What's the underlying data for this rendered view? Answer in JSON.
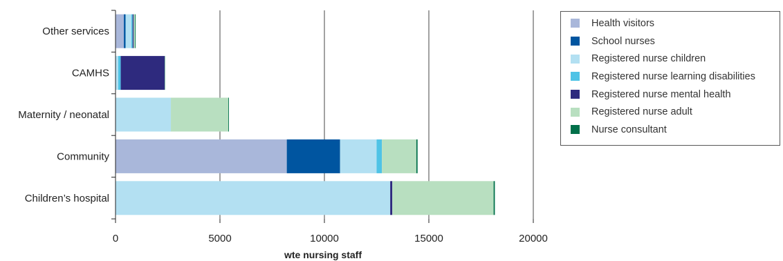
{
  "chart_data": {
    "type": "bar",
    "orientation": "horizontal",
    "stacked": true,
    "title": "",
    "xlabel": "wte nursing staff",
    "ylabel": "",
    "xlim": [
      0,
      20000
    ],
    "xticks": [
      "0",
      "5000",
      "10000",
      "15000",
      "20000"
    ],
    "grid": "vertical lines",
    "legend_position": "right",
    "categories": [
      "Other services",
      "CAMHS",
      "Maternity / neonatal",
      "Community",
      "Children’s hospital"
    ],
    "series": [
      {
        "name": "Health visitors",
        "color": "#a9b7da",
        "values": [
          400,
          0,
          0,
          8200,
          0
        ]
      },
      {
        "name": "School nurses",
        "color": "#0055a0",
        "values": [
          80,
          0,
          0,
          2550,
          0
        ]
      },
      {
        "name": "Registered nurse children",
        "color": "#b3e0f2",
        "values": [
          280,
          130,
          2650,
          1750,
          13150
        ]
      },
      {
        "name": "Registered nurse learning disabilities",
        "color": "#4fc3e6",
        "values": [
          60,
          120,
          0,
          250,
          0
        ]
      },
      {
        "name": "Registered nurse mental health",
        "color": "#2e2a7e",
        "values": [
          50,
          2100,
          0,
          0,
          100
        ]
      },
      {
        "name": "Registered nurse adult",
        "color": "#b8dfc0",
        "values": [
          60,
          0,
          2750,
          1650,
          4850
        ]
      },
      {
        "name": "Nurse consultant",
        "color": "#00704a",
        "values": [
          30,
          10,
          30,
          60,
          60
        ]
      }
    ]
  }
}
